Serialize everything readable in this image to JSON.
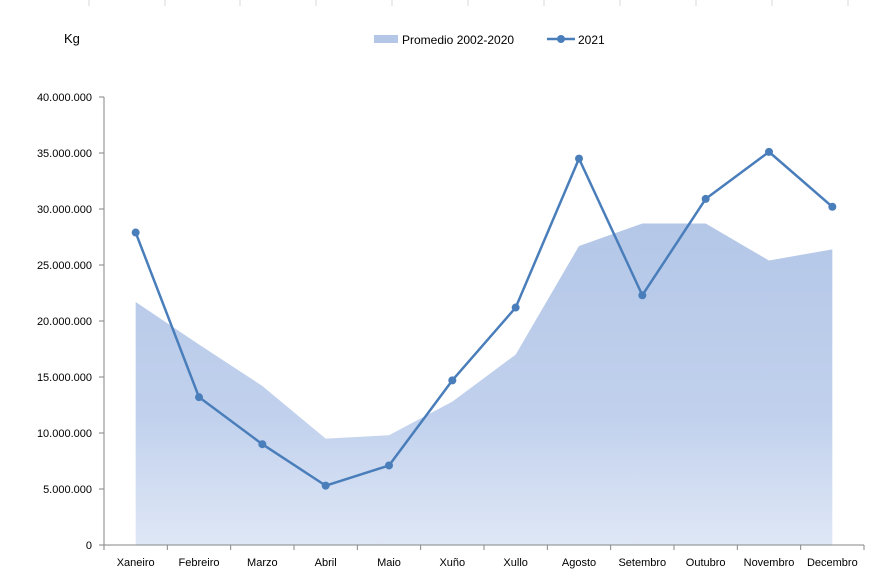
{
  "chart_data": {
    "type": "line",
    "ylabel": "Kg",
    "categories": [
      "Xaneiro",
      "Febreiro",
      "Marzo",
      "Abril",
      "Maio",
      "Xuño",
      "Xullo",
      "Agosto",
      "Setembro",
      "Outubro",
      "Novembro",
      "Decembro"
    ],
    "ylim": [
      0,
      40000000
    ],
    "y_ticks": [
      "0",
      "5.000.000",
      "10.000.000",
      "15.000.000",
      "20.000.000",
      "25.000.000",
      "30.000.000",
      "35.000.000",
      "40.000.000"
    ],
    "y_tick_values": [
      0,
      5000000,
      10000000,
      15000000,
      20000000,
      25000000,
      30000000,
      35000000,
      40000000
    ],
    "grid": false,
    "legend": "top",
    "series": [
      {
        "name": "Promedio 2002-2020",
        "kind": "area",
        "color": "#b4c7e7",
        "values": [
          21700000,
          17900000,
          14200000,
          9500000,
          9800000,
          12800000,
          17000000,
          26700000,
          28700000,
          28700000,
          25400000,
          26400000
        ]
      },
      {
        "name": "2021",
        "kind": "line",
        "color": "#4a7ebb",
        "values": [
          27900000,
          13200000,
          9000000,
          5300000,
          7100000,
          14700000,
          21200000,
          34500000,
          22300000,
          30900000,
          35100000,
          30200000
        ]
      }
    ]
  }
}
